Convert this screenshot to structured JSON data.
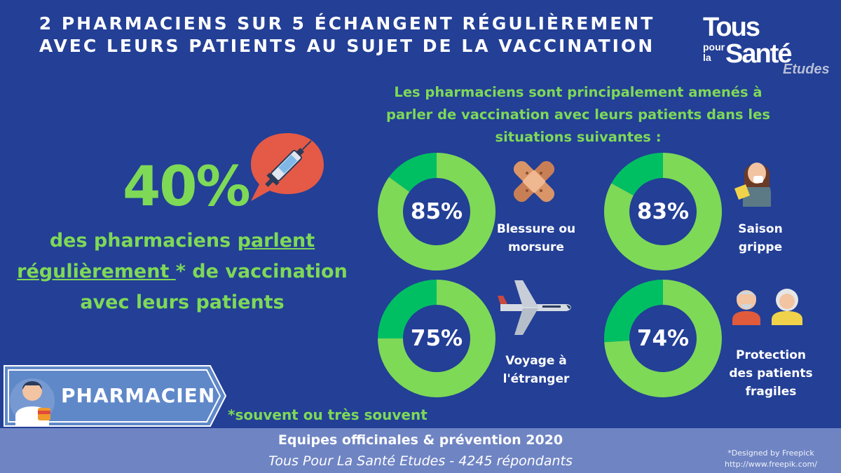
{
  "header": {
    "title_line1": "2 PHARMACIENS SUR 5 ÉCHANGENT RÉGULIÈREMENT",
    "title_line2": "AVEC LEURS PATIENTS AU SUJET DE LA VACCINATION"
  },
  "logo": {
    "tous": "Tous",
    "pour": "pour",
    "la": "la",
    "sante": "Santé",
    "etudes": "Etudes"
  },
  "left": {
    "percent": "40%",
    "text_part1": "des pharmaciens ",
    "text_underline1": "parlent",
    "text_underline2": "régulièrement ",
    "text_part2": "* de vaccination",
    "text_line3": "avec leurs patients",
    "footnote": "*souvent ou très souvent"
  },
  "right": {
    "subtitle_line1": "Les pharmaciens sont principalement amenés à",
    "subtitle_line2": "parler de vaccination avec leurs patients dans les",
    "subtitle_line3": "situations suivantes :"
  },
  "chart_data": {
    "type": "pie",
    "variant": "donut",
    "series": [
      {
        "label_line1": "Blessure ou",
        "label_line2": "morsure",
        "value": 85,
        "display": "85%",
        "icon": "bandage-icon"
      },
      {
        "label_line1": "Saison",
        "label_line2": "grippe",
        "value": 83,
        "display": "83%",
        "icon": "sick-person-icon"
      },
      {
        "label_line1": "Voyage à",
        "label_line2": "l'étranger",
        "value": 75,
        "display": "75%",
        "icon": "airplane-icon"
      },
      {
        "label_line1": "Protection",
        "label_line2": "des patients",
        "label_line3": "fragiles",
        "value": 74,
        "display": "74%",
        "icon": "elderly-couple-icon"
      }
    ],
    "colors": {
      "filled": "#7ed957",
      "remainder": "#00bf63",
      "hole": "#233f96"
    }
  },
  "badge": {
    "label": "PHARMACIEN"
  },
  "footer": {
    "line1": "Equipes officinales & prévention 2020",
    "line2": "Tous Pour La Santé Etudes - 4245 répondants",
    "credit_line1": "*Designed by Freepick",
    "credit_line2": "http://www.freepik.com/"
  },
  "colors": {
    "background": "#233f96",
    "accent_green": "#7ed957",
    "footer_band": "#6f84c3"
  }
}
